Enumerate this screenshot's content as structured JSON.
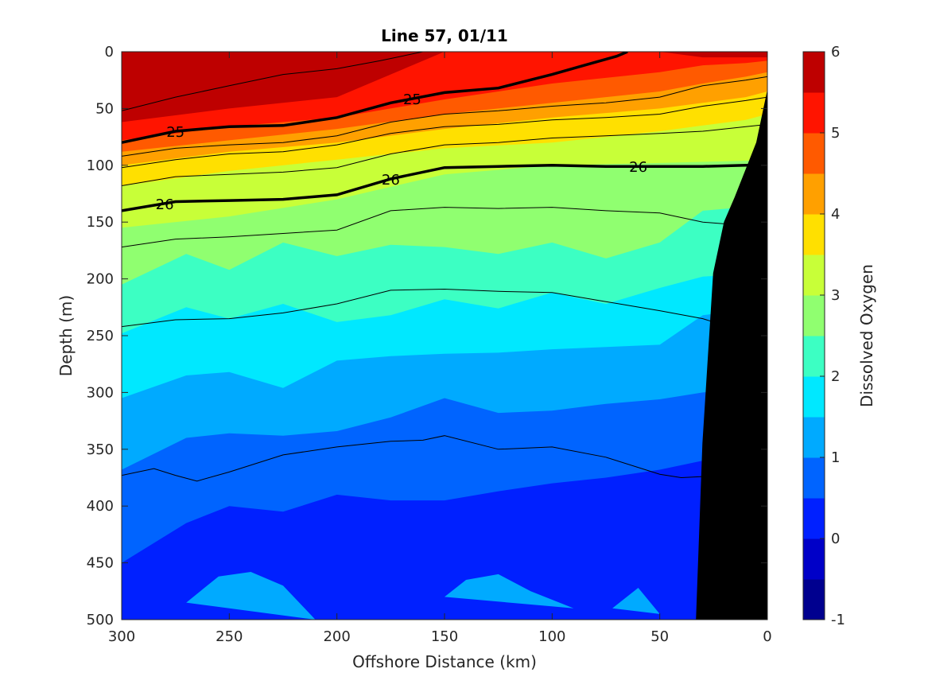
{
  "chart_data": {
    "type": "heatmap",
    "title": "Line 57, 01/11",
    "xlabel": "Offshore Distance (km)",
    "ylabel": "Depth (m)",
    "colorbar_label": "Dissolved Oxygen",
    "xlim": [
      300,
      0
    ],
    "ylim": [
      500,
      0
    ],
    "x_ticks": [
      "300",
      "250",
      "200",
      "150",
      "100",
      "50",
      "0"
    ],
    "y_ticks": [
      "0",
      "50",
      "100",
      "150",
      "200",
      "250",
      "300",
      "350",
      "400",
      "450",
      "500"
    ],
    "colorbar_ticks": [
      "-1",
      "0",
      "1",
      "2",
      "3",
      "4",
      "5",
      "6"
    ],
    "clim": [
      -1,
      6
    ],
    "levels": [
      -1,
      -0.5,
      0,
      0.5,
      1,
      1.5,
      2,
      2.5,
      3,
      3.5,
      4,
      4.5,
      5,
      5.5,
      6
    ],
    "level_colors": [
      "#00008f",
      "#0000c8",
      "#0020ff",
      "#0064ff",
      "#00aaff",
      "#00e8ff",
      "#3cffc3",
      "#90ff70",
      "#c8ff38",
      "#ffe000",
      "#ffa000",
      "#ff5a00",
      "#ff1400",
      "#be0000"
    ],
    "oxygen_boundaries": [
      {
        "level": 5.5,
        "x": [
          300,
          250,
          200,
          150,
          100,
          50,
          30,
          10,
          0
        ],
        "depth": [
          62,
          50,
          40,
          0,
          0,
          0,
          5,
          5,
          5
        ]
      },
      {
        "level": 5.0,
        "x": [
          300,
          250,
          200,
          150,
          100,
          50,
          30,
          10,
          0
        ],
        "depth": [
          78,
          66,
          58,
          42,
          28,
          18,
          12,
          10,
          8
        ]
      },
      {
        "level": 4.5,
        "x": [
          300,
          250,
          200,
          150,
          100,
          50,
          30,
          10,
          0
        ],
        "depth": [
          88,
          78,
          68,
          55,
          45,
          35,
          28,
          22,
          18
        ]
      },
      {
        "level": 4.0,
        "x": [
          300,
          250,
          200,
          150,
          100,
          50,
          30,
          10,
          0
        ],
        "depth": [
          100,
          88,
          80,
          68,
          58,
          50,
          45,
          40,
          35
        ]
      },
      {
        "level": 3.5,
        "x": [
          300,
          250,
          200,
          150,
          100,
          50,
          30,
          10,
          0
        ],
        "depth": [
          118,
          105,
          95,
          85,
          80,
          70,
          65,
          60,
          55
        ]
      },
      {
        "level": 3.0,
        "x": [
          300,
          250,
          200,
          150,
          100,
          50,
          30,
          10,
          0
        ],
        "depth": [
          155,
          145,
          130,
          108,
          100,
          98,
          97,
          96,
          95
        ]
      },
      {
        "level": 2.5,
        "x": [
          300,
          270,
          250,
          225,
          200,
          175,
          150,
          125,
          100,
          75,
          50,
          30,
          0
        ],
        "depth": [
          205,
          178,
          192,
          168,
          180,
          170,
          172,
          178,
          168,
          182,
          168,
          140,
          135
        ]
      },
      {
        "level": 2.0,
        "x": [
          300,
          270,
          250,
          225,
          200,
          175,
          150,
          125,
          100,
          75,
          50,
          30,
          0
        ],
        "depth": [
          248,
          225,
          235,
          222,
          238,
          232,
          218,
          226,
          212,
          222,
          208,
          198,
          195
        ]
      },
      {
        "level": 1.5,
        "x": [
          300,
          270,
          250,
          225,
          200,
          175,
          150,
          125,
          100,
          75,
          50,
          30,
          0
        ],
        "depth": [
          305,
          285,
          282,
          296,
          272,
          268,
          266,
          265,
          262,
          260,
          258,
          232,
          225
        ]
      },
      {
        "level": 1.0,
        "x": [
          300,
          270,
          250,
          225,
          200,
          175,
          150,
          125,
          100,
          75,
          50,
          30,
          0
        ],
        "depth": [
          368,
          340,
          336,
          338,
          334,
          322,
          305,
          318,
          316,
          310,
          306,
          300,
          295
        ]
      },
      {
        "level": 0.5,
        "x": [
          300,
          270,
          250,
          225,
          200,
          175,
          150,
          125,
          100,
          75,
          50,
          30,
          0
        ],
        "depth": [
          450,
          415,
          400,
          405,
          390,
          395,
          395,
          387,
          380,
          375,
          368,
          360,
          355
        ]
      }
    ],
    "low_oxygen_pockets": [
      {
        "level": 1.0,
        "x": [
          270,
          255,
          240,
          225,
          210
        ],
        "depth": [
          485,
          462,
          458,
          470,
          500
        ]
      },
      {
        "level": 1.0,
        "x": [
          150,
          140,
          125,
          110,
          90
        ],
        "depth": [
          480,
          465,
          460,
          475,
          490
        ]
      },
      {
        "level": 1.0,
        "x": [
          72,
          60,
          50
        ],
        "depth": [
          490,
          472,
          495
        ]
      }
    ],
    "density_contours": [
      {
        "label": "",
        "bold": false,
        "x": [
          300,
          275,
          250,
          225,
          200,
          180,
          160
        ],
        "depth": [
          52,
          40,
          30,
          20,
          15,
          8,
          0
        ]
      },
      {
        "label": "25",
        "bold": true,
        "x": [
          300,
          275,
          250,
          225,
          200,
          175,
          150,
          125,
          100,
          85,
          70,
          65
        ],
        "depth": [
          80,
          70,
          66,
          65,
          58,
          45,
          36,
          32,
          20,
          12,
          4,
          0
        ]
      },
      {
        "label": "",
        "bold": false,
        "x": [
          300,
          275,
          250,
          225,
          200,
          175,
          150,
          125,
          100,
          75,
          50,
          30,
          10,
          0
        ],
        "depth": [
          92,
          85,
          82,
          80,
          74,
          62,
          55,
          52,
          48,
          45,
          40,
          30,
          25,
          22
        ]
      },
      {
        "label": "",
        "bold": false,
        "x": [
          300,
          275,
          250,
          225,
          200,
          175,
          150,
          125,
          100,
          75,
          50,
          30,
          10,
          0
        ],
        "depth": [
          102,
          95,
          90,
          88,
          82,
          72,
          66,
          64,
          60,
          58,
          55,
          48,
          43,
          40
        ]
      },
      {
        "label": "",
        "bold": false,
        "x": [
          300,
          275,
          250,
          225,
          200,
          175,
          150,
          125,
          100,
          75,
          50,
          30,
          10,
          0
        ],
        "depth": [
          118,
          110,
          108,
          106,
          102,
          90,
          82,
          80,
          76,
          74,
          72,
          70,
          66,
          64
        ]
      },
      {
        "label": "26",
        "bold": true,
        "x": [
          300,
          275,
          250,
          225,
          200,
          175,
          150,
          125,
          100,
          75,
          50,
          30,
          10,
          0
        ],
        "depth": [
          140,
          132,
          131,
          130,
          126,
          112,
          102,
          101,
          100,
          101,
          101,
          101,
          100,
          100
        ]
      },
      {
        "label": "",
        "bold": false,
        "x": [
          300,
          275,
          250,
          225,
          200,
          175,
          150,
          125,
          100,
          75,
          50,
          30,
          10
        ],
        "depth": [
          172,
          165,
          163,
          160,
          157,
          140,
          137,
          138,
          137,
          140,
          142,
          150,
          153
        ]
      },
      {
        "label": "",
        "bold": false,
        "x": [
          300,
          275,
          250,
          225,
          200,
          175,
          150,
          125,
          100,
          75,
          50,
          30,
          25
        ],
        "depth": [
          242,
          236,
          235,
          230,
          222,
          210,
          209,
          211,
          212,
          220,
          228,
          235,
          238
        ]
      },
      {
        "label": "",
        "bold": false,
        "x": [
          300,
          285,
          275,
          265,
          250,
          225,
          200,
          175,
          160,
          150,
          125,
          100,
          75,
          50,
          40,
          30
        ],
        "depth": [
          373,
          367,
          373,
          378,
          370,
          355,
          348,
          343,
          342,
          338,
          350,
          348,
          357,
          372,
          375,
          374
        ]
      }
    ],
    "bathymetry": {
      "x": [
        0,
        5,
        15,
        20,
        25,
        30,
        33,
        33,
        0
      ],
      "depth": [
        35,
        80,
        128,
        150,
        195,
        345,
        500,
        500,
        500
      ]
    }
  }
}
